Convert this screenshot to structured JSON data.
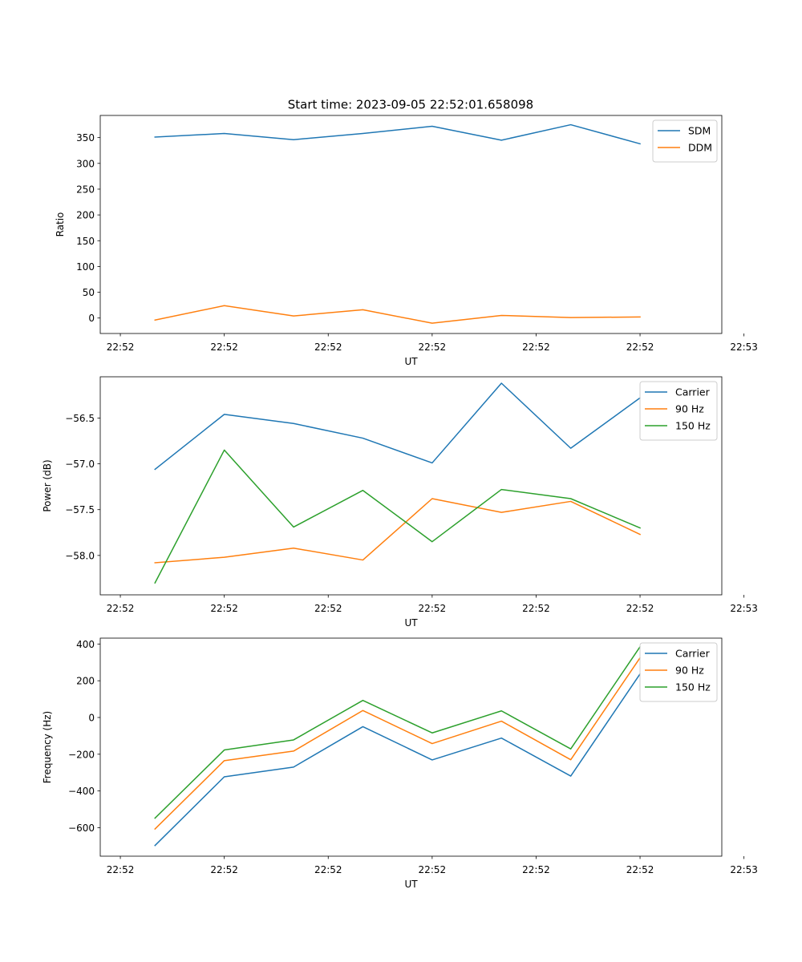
{
  "figure": {
    "title": "Start time: 2023-09-05 22:52:01.658098"
  },
  "colors": {
    "blue": "#1f77b4",
    "orange": "#ff7f0e",
    "green": "#2ca02c"
  },
  "chart_data": [
    {
      "type": "line",
      "title": "Start time: 2023-09-05 22:52:01.658098",
      "xlabel": "UT",
      "ylabel": "Ratio",
      "x": [
        1,
        2,
        3,
        4,
        5,
        6,
        7,
        8
      ],
      "xlim": [
        0.21,
        9.18
      ],
      "xticks": [
        0.5,
        2,
        3.5,
        5,
        6.5,
        8,
        9.5
      ],
      "xtick_labels": [
        "22:52",
        "22:52",
        "22:52",
        "22:52",
        "22:52",
        "22:52",
        "22:53"
      ],
      "ylim": [
        -30,
        393
      ],
      "yticks": [
        0,
        50,
        100,
        150,
        200,
        250,
        300,
        350
      ],
      "ytick_labels": [
        "0",
        "50",
        "100",
        "150",
        "200",
        "250",
        "300",
        "350"
      ],
      "legend": "top-right",
      "series": [
        {
          "name": "SDM",
          "color": "#1f77b4",
          "values": [
            351,
            358,
            346,
            358,
            372,
            345,
            375,
            338
          ]
        },
        {
          "name": "DDM",
          "color": "#ff7f0e",
          "values": [
            -4,
            24,
            4,
            16,
            -10,
            5,
            1,
            2
          ]
        }
      ]
    },
    {
      "type": "line",
      "title": "",
      "xlabel": "UT",
      "ylabel": "Power (dB)",
      "x": [
        1,
        2,
        3,
        4,
        5,
        6,
        7,
        8
      ],
      "xlim": [
        0.21,
        9.18
      ],
      "xticks": [
        0.5,
        2,
        3.5,
        5,
        6.5,
        8,
        9.5
      ],
      "xtick_labels": [
        "22:52",
        "22:52",
        "22:52",
        "22:52",
        "22:52",
        "22:52",
        "22:53"
      ],
      "ylim": [
        -58.43,
        -56.05
      ],
      "yticks": [
        -58.0,
        -57.5,
        -57.0,
        -56.5
      ],
      "ytick_labels": [
        "−58.0",
        "−57.5",
        "−57.0",
        "−56.5"
      ],
      "legend": "top-right",
      "series": [
        {
          "name": "Carrier",
          "color": "#1f77b4",
          "values": [
            -57.06,
            -56.46,
            -56.56,
            -56.72,
            -56.99,
            -56.12,
            -56.83,
            -56.28
          ]
        },
        {
          "name": "90 Hz",
          "color": "#ff7f0e",
          "values": [
            -58.08,
            -58.02,
            -57.92,
            -58.05,
            -57.38,
            -57.53,
            -57.41,
            -57.77
          ]
        },
        {
          "name": "150 Hz",
          "color": "#2ca02c",
          "values": [
            -58.3,
            -56.85,
            -57.69,
            -57.29,
            -57.85,
            -57.28,
            -57.38,
            -57.7
          ]
        }
      ]
    },
    {
      "type": "line",
      "title": "",
      "xlabel": "UT",
      "ylabel": "Frequency (Hz)",
      "x": [
        1,
        2,
        3,
        4,
        5,
        6,
        7,
        8
      ],
      "xlim": [
        0.21,
        9.18
      ],
      "xticks": [
        0.5,
        2,
        3.5,
        5,
        6.5,
        8,
        9.5
      ],
      "xtick_labels": [
        "22:52",
        "22:52",
        "22:52",
        "22:52",
        "22:52",
        "22:52",
        "22:53"
      ],
      "ylim": [
        -755,
        432
      ],
      "yticks": [
        -600,
        -400,
        -200,
        0,
        200,
        400
      ],
      "ytick_labels": [
        "−600",
        "−400",
        "−200",
        "0",
        "200",
        "400"
      ],
      "legend": "top-right",
      "series": [
        {
          "name": "Carrier",
          "color": "#1f77b4",
          "values": [
            -697,
            -323,
            -270,
            -50,
            -231,
            -112,
            -319,
            237
          ]
        },
        {
          "name": "90 Hz",
          "color": "#ff7f0e",
          "values": [
            -607,
            -235,
            -183,
            38,
            -142,
            -20,
            -230,
            325
          ]
        },
        {
          "name": "150 Hz",
          "color": "#2ca02c",
          "values": [
            -548,
            -177,
            -122,
            93,
            -84,
            36,
            -171,
            385
          ]
        }
      ]
    }
  ]
}
